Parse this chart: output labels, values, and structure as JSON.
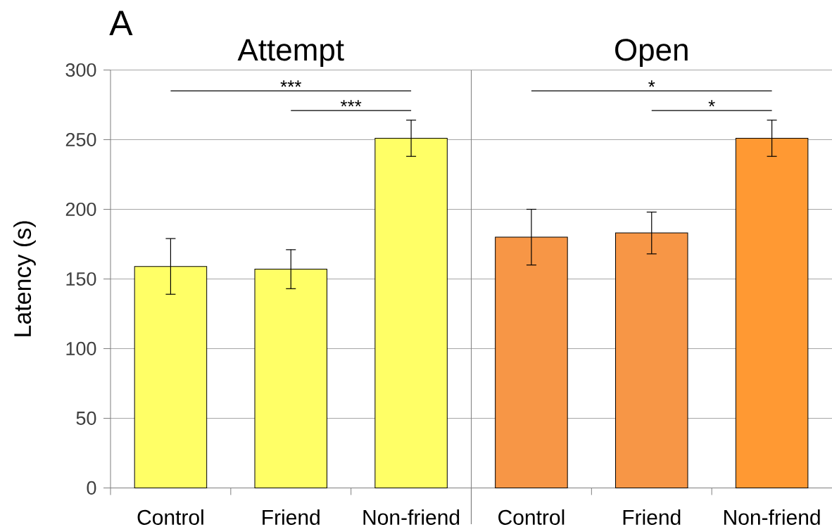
{
  "chart_data": [
    {
      "type": "bar",
      "title": "A",
      "subtitle": "Attempt",
      "ylabel": "Latency (s)",
      "categories": [
        "Control",
        "Friend",
        "Non-friend"
      ],
      "values": [
        159,
        157,
        251
      ],
      "errors": [
        20,
        14,
        13
      ],
      "colors": [
        "#ffff66",
        "#ffff66",
        "#ffff66"
      ],
      "ylim": [
        0,
        300
      ],
      "yticks": [
        0,
        50,
        100,
        150,
        200,
        250,
        300
      ],
      "grid": "y",
      "annotations": [
        "***",
        "***"
      ]
    },
    {
      "type": "bar",
      "subtitle": "Open",
      "categories": [
        "Control",
        "Friend",
        "Non-friend"
      ],
      "values": [
        180,
        183,
        251
      ],
      "errors": [
        20,
        15,
        13
      ],
      "colors": [
        "#f79646",
        "#f79646",
        "#ff9933"
      ],
      "ylim": [
        0,
        300
      ],
      "yticks": [
        0,
        50,
        100,
        150,
        200,
        250,
        300
      ],
      "grid": "y",
      "tick_labels": "x",
      "annotations": [
        "*",
        "*"
      ]
    }
  ]
}
